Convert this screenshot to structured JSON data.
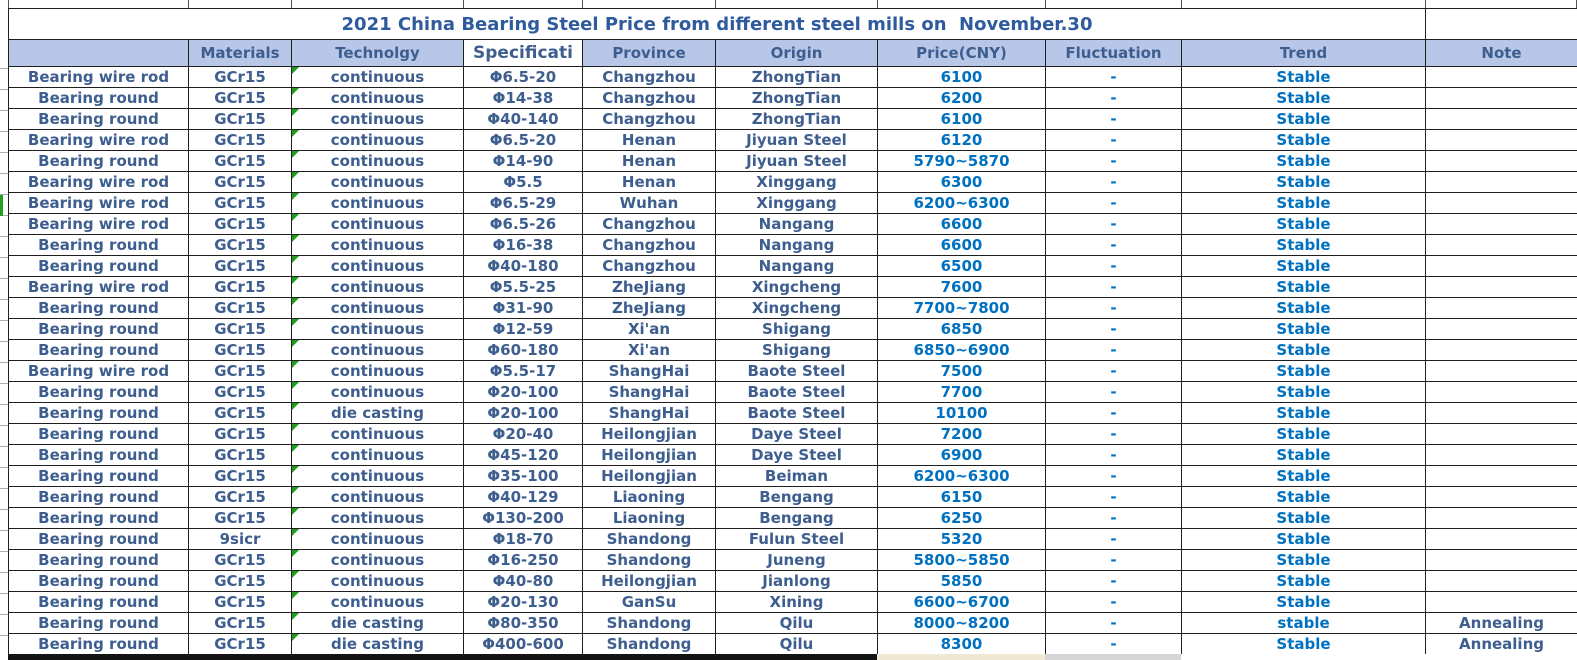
{
  "title": "2021 China Bearing Steel Price from different steel mills on  November.30",
  "columns": [
    {
      "key": "product",
      "label": ""
    },
    {
      "key": "material",
      "label": "Materials"
    },
    {
      "key": "technology",
      "label": "Technolgy"
    },
    {
      "key": "specification",
      "label": "Specificati"
    },
    {
      "key": "province",
      "label": "Province"
    },
    {
      "key": "origin",
      "label": "Origin"
    },
    {
      "key": "price",
      "label": "Price(CNY)"
    },
    {
      "key": "fluctuation",
      "label": "Fluctuation"
    },
    {
      "key": "trend",
      "label": "Trend"
    },
    {
      "key": "note",
      "label": "Note"
    }
  ],
  "value_columns": [
    "price",
    "fluctuation",
    "trend"
  ],
  "rows": [
    {
      "product": "Bearing wire rod",
      "material": "GCr15",
      "technology": "continuous",
      "specification": "Φ6.5-20",
      "province": "Changzhou",
      "origin": "ZhongTian",
      "price": "6100",
      "fluctuation": "-",
      "trend": "Stable",
      "note": ""
    },
    {
      "product": "Bearing round",
      "material": "GCr15",
      "technology": "continuous",
      "specification": "Φ14-38",
      "province": "Changzhou",
      "origin": "ZhongTian",
      "price": "6200",
      "fluctuation": "-",
      "trend": "Stable",
      "note": ""
    },
    {
      "product": "Bearing round",
      "material": "GCr15",
      "technology": "continuous",
      "specification": "Φ40-140",
      "province": "Changzhou",
      "origin": "ZhongTian",
      "price": "6100",
      "fluctuation": "-",
      "trend": "Stable",
      "note": ""
    },
    {
      "product": "Bearing wire rod",
      "material": "GCr15",
      "technology": "continuous",
      "specification": "Φ6.5-20",
      "province": "Henan",
      "origin": "Jiyuan Steel",
      "price": "6120",
      "fluctuation": "-",
      "trend": "Stable",
      "note": ""
    },
    {
      "product": "Bearing round",
      "material": "GCr15",
      "technology": "continuous",
      "specification": "Φ14-90",
      "province": "Henan",
      "origin": "Jiyuan Steel",
      "price": "5790~5870",
      "fluctuation": "-",
      "trend": "Stable",
      "note": ""
    },
    {
      "product": "Bearing wire rod",
      "material": "GCr15",
      "technology": "continuous",
      "specification": "Φ5.5",
      "province": "Henan",
      "origin": "Xinggang",
      "price": "6300",
      "fluctuation": "-",
      "trend": "Stable",
      "note": ""
    },
    {
      "product": "Bearing wire rod",
      "material": "GCr15",
      "technology": "continuous",
      "specification": "Φ6.5-29",
      "province": "Wuhan",
      "origin": "Xinggang",
      "price": "6200~6300",
      "fluctuation": "-",
      "trend": "Stable",
      "note": ""
    },
    {
      "product": "Bearing wire rod",
      "material": "GCr15",
      "technology": "continuous",
      "specification": "Φ6.5-26",
      "province": "Changzhou",
      "origin": "Nangang",
      "price": "6600",
      "fluctuation": "-",
      "trend": "Stable",
      "note": ""
    },
    {
      "product": "Bearing round",
      "material": "GCr15",
      "technology": "continuous",
      "specification": "Φ16-38",
      "province": "Changzhou",
      "origin": "Nangang",
      "price": "6600",
      "fluctuation": "-",
      "trend": "Stable",
      "note": ""
    },
    {
      "product": "Bearing round",
      "material": "GCr15",
      "technology": "continuous",
      "specification": "Φ40-180",
      "province": "Changzhou",
      "origin": "Nangang",
      "price": "6500",
      "fluctuation": "-",
      "trend": "Stable",
      "note": ""
    },
    {
      "product": "Bearing wire rod",
      "material": "GCr15",
      "technology": "continuous",
      "specification": "Φ5.5-25",
      "province": "ZheJiang",
      "origin": "Xingcheng",
      "price": "7600",
      "fluctuation": "-",
      "trend": "Stable",
      "note": ""
    },
    {
      "product": "Bearing round",
      "material": "GCr15",
      "technology": "continuous",
      "specification": "Φ31-90",
      "province": "ZheJiang",
      "origin": "Xingcheng",
      "price": "7700~7800",
      "fluctuation": "-",
      "trend": "Stable",
      "note": ""
    },
    {
      "product": "Bearing round",
      "material": "GCr15",
      "technology": "continuous",
      "specification": "Φ12-59",
      "province": "Xi'an",
      "origin": "Shigang",
      "price": "6850",
      "fluctuation": "-",
      "trend": "Stable",
      "note": ""
    },
    {
      "product": "Bearing round",
      "material": "GCr15",
      "technology": "continuous",
      "specification": "Φ60-180",
      "province": "Xi'an",
      "origin": "Shigang",
      "price": "6850~6900",
      "fluctuation": "-",
      "trend": "Stable",
      "note": ""
    },
    {
      "product": "Bearing wire rod",
      "material": "GCr15",
      "technology": "continuous",
      "specification": "Φ5.5-17",
      "province": "ShangHai",
      "origin": "Baote Steel",
      "price": "7500",
      "fluctuation": "-",
      "trend": "Stable",
      "note": ""
    },
    {
      "product": "Bearing round",
      "material": "GCr15",
      "technology": "continuous",
      "specification": "Φ20-100",
      "province": "ShangHai",
      "origin": "Baote Steel",
      "price": "7700",
      "fluctuation": "-",
      "trend": "Stable",
      "note": ""
    },
    {
      "product": "Bearing round",
      "material": "GCr15",
      "technology": "die casting",
      "specification": "Φ20-100",
      "province": "ShangHai",
      "origin": "Baote Steel",
      "price": "10100",
      "fluctuation": "-",
      "trend": "Stable",
      "note": ""
    },
    {
      "product": "Bearing round",
      "material": "GCr15",
      "technology": "continuous",
      "specification": "Φ20-40",
      "province": "Heilongjian",
      "origin": "Daye Steel",
      "price": "7200",
      "fluctuation": "-",
      "trend": "Stable",
      "note": ""
    },
    {
      "product": "Bearing round",
      "material": "GCr15",
      "technology": "continuous",
      "specification": "Φ45-120",
      "province": "Heilongjian",
      "origin": "Daye Steel",
      "price": "6900",
      "fluctuation": "-",
      "trend": "Stable",
      "note": ""
    },
    {
      "product": "Bearing round",
      "material": "GCr15",
      "technology": "continuous",
      "specification": "Φ35-100",
      "province": "Heilongjian",
      "origin": "Beiman",
      "price": "6200~6300",
      "fluctuation": "-",
      "trend": "Stable",
      "note": ""
    },
    {
      "product": "Bearing round",
      "material": "GCr15",
      "technology": "continuous",
      "specification": "Φ40-129",
      "province": "Liaoning",
      "origin": "Bengang",
      "price": "6150",
      "fluctuation": "-",
      "trend": "Stable",
      "note": ""
    },
    {
      "product": "Bearing round",
      "material": "GCr15",
      "technology": "continuous",
      "specification": "Φ130-200",
      "province": "Liaoning",
      "origin": "Bengang",
      "price": "6250",
      "fluctuation": "-",
      "trend": "Stable",
      "note": ""
    },
    {
      "product": "Bearing round",
      "material": "9sicr",
      "technology": "continuous",
      "specification": "Φ18-70",
      "province": "Shandong",
      "origin": "Fulun Steel",
      "price": "5320",
      "fluctuation": "-",
      "trend": "Stable",
      "note": ""
    },
    {
      "product": "Bearing round",
      "material": "GCr15",
      "technology": "continuous",
      "specification": "Φ16-250",
      "province": "Shandong",
      "origin": "Juneng",
      "price": "5800~5850",
      "fluctuation": "-",
      "trend": "Stable",
      "note": ""
    },
    {
      "product": "Bearing round",
      "material": "GCr15",
      "technology": "continuous",
      "specification": "Φ40-80",
      "province": "Heilongjian",
      "origin": "Jianlong",
      "price": "5850",
      "fluctuation": "-",
      "trend": "Stable",
      "note": ""
    },
    {
      "product": "Bearing round",
      "material": "GCr15",
      "technology": "continuous",
      "specification": "Φ20-130",
      "province": "GanSu",
      "origin": "Xining",
      "price": "6600~6700",
      "fluctuation": "-",
      "trend": "Stable",
      "note": ""
    },
    {
      "product": "Bearing round",
      "material": "GCr15",
      "technology": "die casting",
      "specification": "Φ80-350",
      "province": "Shandong",
      "origin": "Qilu",
      "price": "8000~8200",
      "fluctuation": "-",
      "trend": "stable",
      "note": "Annealing"
    },
    {
      "product": "Bearing round",
      "material": "GCr15",
      "technology": "die casting",
      "specification": "Φ400-600",
      "province": "Shandong",
      "origin": "Qilu",
      "price": "8300",
      "fluctuation": "-",
      "trend": "Stable",
      "note": "Annealing"
    }
  ],
  "ui": {
    "green_row_marker_row": 7,
    "error_flag_on_technology_cells": true
  },
  "colors": {
    "title_text": "#2F5B9E",
    "header_fill": "#B8C7E8",
    "header_text": "#3D5E8E",
    "label_text": "#3D5E8E",
    "value_text": "#0070C0",
    "grid_line": "#1F1F1F",
    "flag_green": "#1E9E1E",
    "marker_green": "#21A121"
  }
}
